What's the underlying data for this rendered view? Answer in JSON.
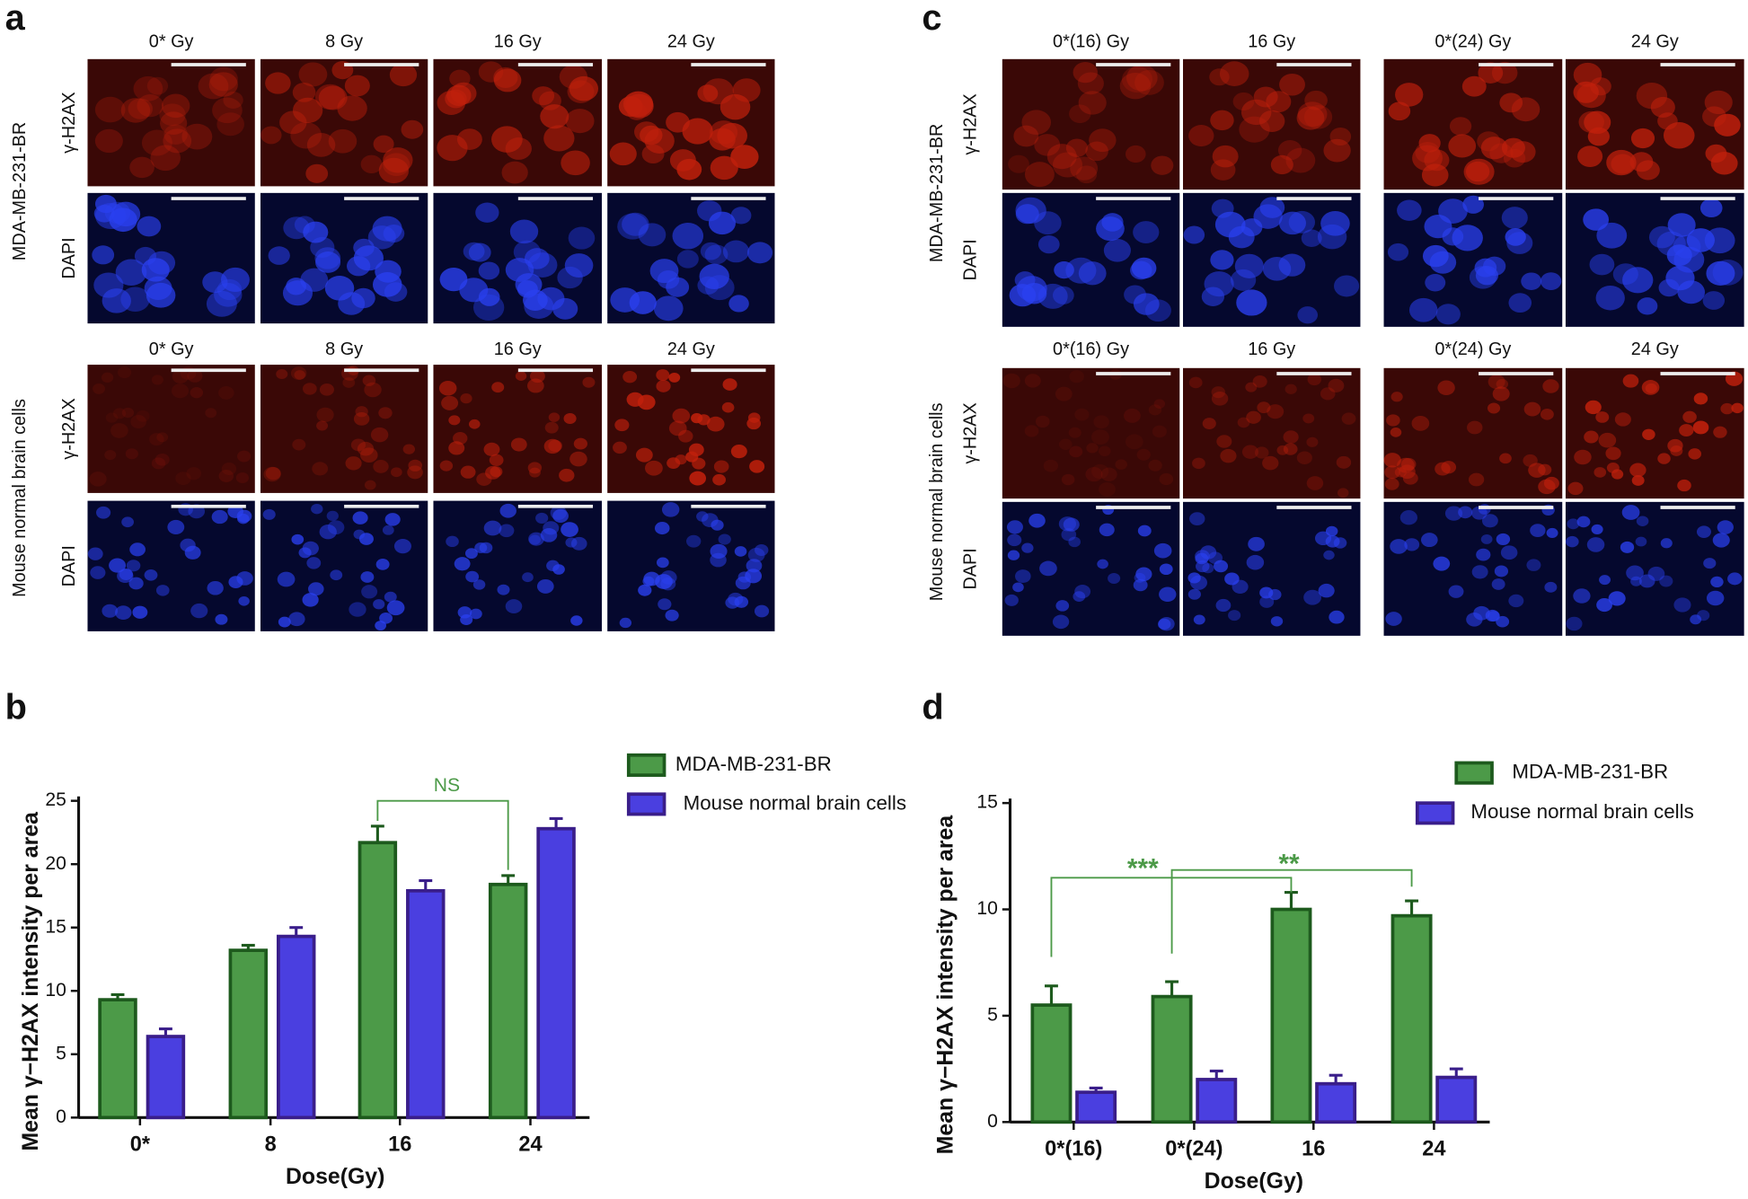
{
  "panel_labels": [
    "a",
    "b",
    "c",
    "d"
  ],
  "panel_a": {
    "doses": [
      "0* Gy",
      "8 Gy",
      "16 Gy",
      "24 Gy"
    ],
    "cell_lines": [
      "MDA-MB-231-BR",
      "Mouse normal brain cells"
    ],
    "stains": [
      "γ-H2AX",
      "DAPI"
    ]
  },
  "panel_c": {
    "doses": [
      "0*(16) Gy",
      "16 Gy",
      "0*(24) Gy",
      "24 Gy"
    ],
    "cell_lines": [
      "MDA-MB-231-BR",
      "Mouse normal brain cells"
    ],
    "stains": [
      "γ-H2AX",
      "DAPI"
    ]
  },
  "chart_data": [
    {
      "type": "bar",
      "xlabel": "Dose(Gy)",
      "ylabel": "Mean γ−H2AX intensity per area",
      "categories": [
        "0*",
        "8",
        "16",
        "24"
      ],
      "series": [
        {
          "name": "MDA-MB-231-BR",
          "color": "#4c9a48",
          "edge_color": "#1d5a1d",
          "values": [
            9.3,
            13.2,
            21.7,
            18.4
          ],
          "errors": [
            0.4,
            0.4,
            1.3,
            0.7
          ]
        },
        {
          "name": "Mouse normal brain cells",
          "color": "#4a3fe0",
          "edge_color": "#3a1e8a",
          "values": [
            6.4,
            14.3,
            17.9,
            22.8
          ],
          "errors": [
            0.6,
            0.7,
            0.8,
            0.8
          ]
        }
      ],
      "ylim": [
        0,
        25
      ],
      "yticks": [
        0,
        5,
        10,
        15,
        20,
        25
      ],
      "annotations": [
        "NS"
      ]
    },
    {
      "type": "bar",
      "xlabel": "Dose(Gy)",
      "ylabel": "Mean γ−H2AX intensity per area",
      "categories": [
        "0*(16)",
        "0*(24)",
        "16",
        "24"
      ],
      "series": [
        {
          "name": "MDA-MB-231-BR",
          "color": "#4c9a48",
          "edge_color": "#1d5a1d",
          "values": [
            5.5,
            5.9,
            10.0,
            9.7
          ],
          "errors": [
            0.9,
            0.7,
            0.8,
            0.7
          ]
        },
        {
          "name": "Mouse normal brain cells",
          "color": "#4a3fe0",
          "edge_color": "#3a1e8a",
          "values": [
            1.4,
            2.0,
            1.8,
            2.1
          ],
          "errors": [
            0.2,
            0.4,
            0.4,
            0.4
          ]
        }
      ],
      "ylim": [
        0,
        15
      ],
      "yticks": [
        0,
        5,
        10,
        15
      ],
      "annotations": [
        "***",
        "**"
      ]
    }
  ]
}
